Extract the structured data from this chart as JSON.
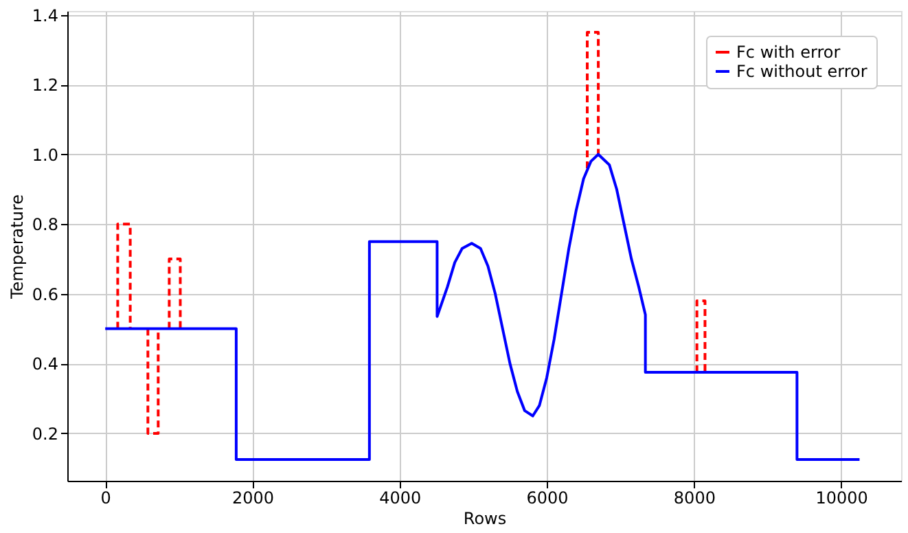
{
  "chart_data": {
    "type": "line",
    "xlabel": "Rows",
    "ylabel": "Temperature",
    "xlim": [
      -515,
      10815
    ],
    "ylim": [
      0.064,
      1.411
    ],
    "xticks": [
      0,
      2000,
      4000,
      6000,
      8000,
      10000
    ],
    "yticks": [
      0.2,
      0.4,
      0.6,
      0.8,
      {
        "value": 1.0,
        "label": "1.0"
      },
      1.2,
      1.4
    ],
    "grid": true,
    "legend": "top right",
    "marker": "none",
    "series": [
      {
        "name": "Fc with error",
        "color": "#ff0000",
        "line_style": "dashed",
        "x": [
          170,
          170,
          340,
          340,
          460,
          580,
          580,
          720,
          720,
          800,
          870,
          870,
          1020,
          1020,
          3800,
          6550,
          6550,
          6700,
          6700,
          7500,
          8040,
          8040,
          8150,
          8150
        ],
        "values": [
          0.5,
          0.8,
          0.8,
          0.5,
          null,
          0.5,
          0.2,
          0.2,
          0.5,
          null,
          0.5,
          0.7,
          0.7,
          0.5,
          null,
          0.96,
          1.35,
          1.35,
          1.0,
          null,
          0.375,
          0.58,
          0.58,
          0.375
        ]
      },
      {
        "name": "Fc without error",
        "color": "#0000ff",
        "line_style": "solid",
        "x": [
          0,
          1780,
          1780,
          3590,
          3590,
          4510,
          4510,
          4650,
          4750,
          4850,
          4980,
          5100,
          5200,
          5300,
          5400,
          5500,
          5600,
          5700,
          5810,
          5900,
          6000,
          6100,
          6200,
          6300,
          6400,
          6500,
          6600,
          6700,
          6850,
          6950,
          7050,
          7150,
          7250,
          7340,
          7340,
          9400,
          9400,
          10250
        ],
        "values": [
          0.5,
          0.5,
          0.125,
          0.125,
          0.75,
          0.75,
          0.535,
          0.62,
          0.69,
          0.73,
          0.745,
          0.73,
          0.68,
          0.6,
          0.5,
          0.4,
          0.32,
          0.265,
          0.25,
          0.28,
          0.36,
          0.47,
          0.6,
          0.73,
          0.84,
          0.93,
          0.98,
          1.0,
          0.97,
          0.9,
          0.8,
          0.7,
          0.62,
          0.54,
          0.375,
          0.375,
          0.125,
          0.125
        ]
      }
    ]
  }
}
